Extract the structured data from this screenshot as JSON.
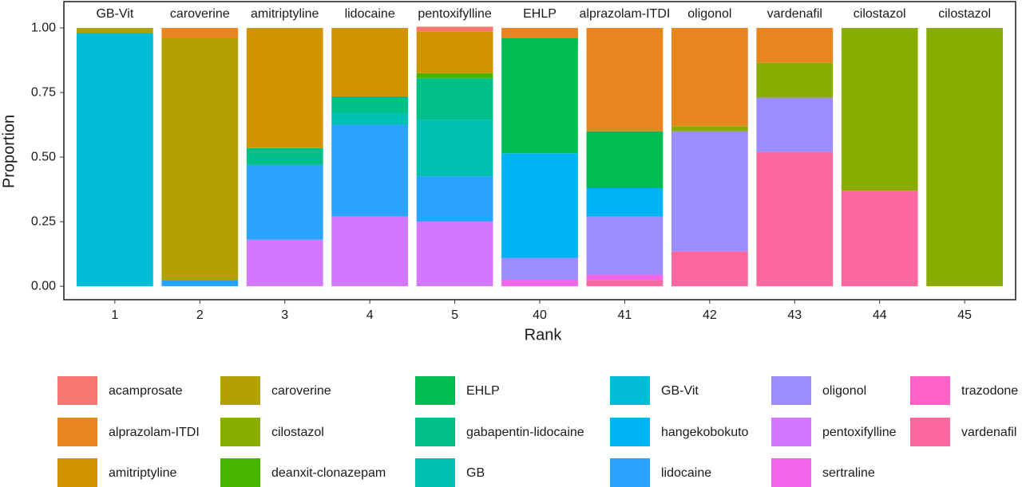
{
  "chart_data": {
    "type": "stacked_bar",
    "x_label": "Rank",
    "y_label": "Proportion",
    "categories": [
      "1",
      "2",
      "3",
      "4",
      "5",
      "40",
      "41",
      "42",
      "43",
      "44",
      "45"
    ],
    "strip_labels": [
      "GB-Vit",
      "caroverine",
      "amitriptyline",
      "lidocaine",
      "pentoxifylline",
      "EHLP",
      "alprazolam-ITDI",
      "oligonol",
      "vardenafil",
      "cilostazol",
      "cilostazol"
    ],
    "ylim": [
      -0.052,
      1.102
    ],
    "yticks": [
      {
        "value": 0,
        "label": "0.00"
      },
      0.25,
      {
        "value": 0.5,
        "label": "0.50"
      },
      0.75,
      {
        "value": 1,
        "label": "1.00"
      }
    ],
    "series": [
      {
        "name": "acamprosate",
        "color": "#F8766D",
        "values": [
          null,
          null,
          null,
          null,
          0.02,
          null,
          null,
          null,
          null,
          null,
          null
        ]
      },
      {
        "name": "alprazolam-ITDI",
        "color": "#E7851E",
        "values": [
          null,
          0.04,
          null,
          null,
          null,
          0.04,
          0.4,
          0.38,
          0.135,
          null,
          null
        ]
      },
      {
        "name": "amitriptyline",
        "color": "#D09400",
        "values": [
          null,
          null,
          0.465,
          0.265,
          0.16,
          null,
          null,
          null,
          null,
          null,
          null
        ]
      },
      {
        "name": "caroverine",
        "color": "#B2A100",
        "values": [
          0.02,
          0.935,
          null,
          null,
          null,
          null,
          null,
          null,
          null,
          null,
          null
        ]
      },
      {
        "name": "cilostazol",
        "color": "#89AC00",
        "values": [
          null,
          null,
          null,
          null,
          null,
          null,
          null,
          0.02,
          0.135,
          0.63,
          1.0
        ]
      },
      {
        "name": "deanxit-clonazepam",
        "color": "#45B500",
        "values": [
          null,
          null,
          null,
          null,
          0.02,
          null,
          null,
          null,
          null,
          null,
          null
        ]
      },
      {
        "name": "EHLP",
        "color": "#00BC51",
        "values": [
          null,
          null,
          null,
          null,
          null,
          0.445,
          0.22,
          null,
          null,
          null,
          null
        ]
      },
      {
        "name": "gabapentin-lidocaine",
        "color": "#00C087",
        "values": [
          null,
          null,
          0.065,
          0.065,
          0.16,
          null,
          null,
          null,
          null,
          null,
          null
        ]
      },
      {
        "name": "GB",
        "color": "#00C0B2",
        "values": [
          null,
          null,
          null,
          0.045,
          0.22,
          null,
          null,
          null,
          null,
          null,
          null
        ]
      },
      {
        "name": "GB-Vit",
        "color": "#00BCD6",
        "values": [
          0.98,
          null,
          null,
          null,
          null,
          null,
          null,
          null,
          null,
          null,
          null
        ]
      },
      {
        "name": "hangekobokuto",
        "color": "#00B3F2",
        "values": [
          null,
          null,
          null,
          null,
          null,
          0.405,
          0.11,
          null,
          null,
          null,
          null
        ]
      },
      {
        "name": "lidocaine",
        "color": "#29A3FF",
        "values": [
          null,
          0.025,
          0.29,
          0.355,
          0.175,
          null,
          null,
          null,
          null,
          null,
          null
        ]
      },
      {
        "name": "oligonol",
        "color": "#9C8DFF",
        "values": [
          null,
          null,
          null,
          null,
          null,
          0.085,
          0.225,
          0.465,
          0.21,
          null,
          null
        ]
      },
      {
        "name": "pentoxifylline",
        "color": "#D277FF",
        "values": [
          null,
          null,
          0.18,
          0.27,
          0.25,
          null,
          null,
          null,
          null,
          null,
          null
        ]
      },
      {
        "name": "sertraline",
        "color": "#F166E8",
        "values": [
          null,
          null,
          null,
          null,
          null,
          0.025,
          0.02,
          null,
          null,
          null,
          null
        ]
      },
      {
        "name": "trazodone",
        "color": "#FF61C7",
        "values": [
          null,
          null,
          null,
          null,
          null,
          null,
          null,
          null,
          null,
          null,
          null
        ]
      },
      {
        "name": "vardenafil",
        "color": "#FF689E",
        "values": [
          null,
          null,
          null,
          null,
          null,
          null,
          0.025,
          0.135,
          0.52,
          0.37,
          null
        ]
      }
    ]
  }
}
